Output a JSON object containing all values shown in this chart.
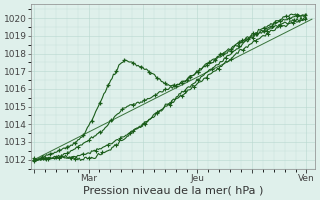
{
  "bg_color": "#dff0eb",
  "grid_color": "#b8d8d0",
  "line_color": "#1a5c1a",
  "ylim": [
    1011.5,
    1020.8
  ],
  "yticks": [
    1012,
    1013,
    1014,
    1015,
    1016,
    1017,
    1018,
    1019,
    1020
  ],
  "xtick_labels": [
    "",
    "Mar",
    "",
    "Jeu",
    "",
    "Ven"
  ],
  "xtick_positions": [
    0,
    1,
    2,
    3,
    4,
    5
  ],
  "xlim": [
    -0.05,
    5.15
  ],
  "tick_fontsize": 6.5,
  "xlabel_fontsize": 8,
  "xlabel_text": "Pression niveau de la mer( hPa )",
  "line_width": 0.8,
  "marker_size": 2.5
}
